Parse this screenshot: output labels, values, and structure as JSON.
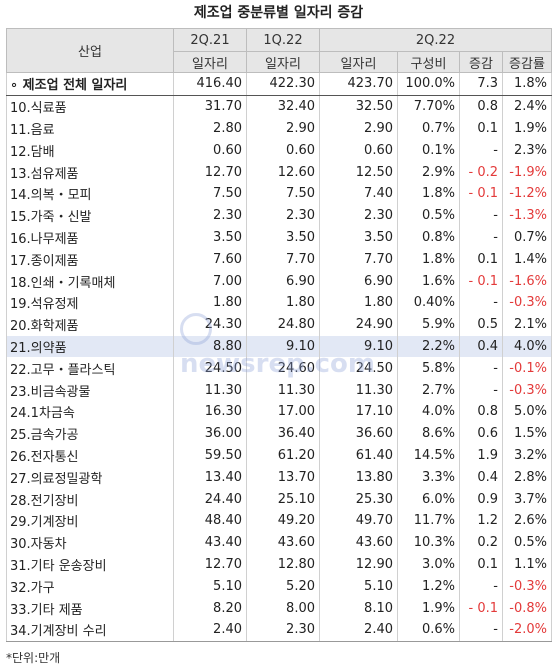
{
  "title": "제조업 중분류별 일자리 증감",
  "header": {
    "industry": "산업",
    "q1": "2Q.21",
    "q2": "1Q.22",
    "q3": "2Q.22",
    "jobs": "일자리",
    "share": "구성비",
    "change": "증감",
    "rate": "증감률"
  },
  "rows": [
    {
      "label": "∘ 제조업 전체 일자리",
      "a": "416.40",
      "b": "422.30",
      "c": "423.70",
      "s": "100.0%",
      "d": "7.3",
      "r": "1.8%",
      "neg_d": false,
      "neg_r": false
    },
    {
      "label": "10.식료품",
      "a": "31.70",
      "b": "32.40",
      "c": "32.50",
      "s": "7.70%",
      "d": "0.8",
      "r": "2.4%",
      "neg_d": false,
      "neg_r": false
    },
    {
      "label": "11.음료",
      "a": "2.80",
      "b": "2.90",
      "c": "2.90",
      "s": "0.7%",
      "d": "0.1",
      "r": "1.9%",
      "neg_d": false,
      "neg_r": false
    },
    {
      "label": "12.담배",
      "a": "0.60",
      "b": "0.60",
      "c": "0.60",
      "s": "0.1%",
      "d": "-",
      "r": "2.3%",
      "neg_d": false,
      "neg_r": false
    },
    {
      "label": "13.섬유제품",
      "a": "12.70",
      "b": "12.60",
      "c": "12.50",
      "s": "2.9%",
      "d": "- 0.2",
      "r": "-1.9%",
      "neg_d": true,
      "neg_r": true
    },
    {
      "label": "14.의복・모피",
      "a": "7.50",
      "b": "7.50",
      "c": "7.40",
      "s": "1.8%",
      "d": "- 0.1",
      "r": "-1.2%",
      "neg_d": true,
      "neg_r": true
    },
    {
      "label": "15.가죽・신발",
      "a": "2.30",
      "b": "2.30",
      "c": "2.30",
      "s": "0.5%",
      "d": "-",
      "r": "-1.3%",
      "neg_d": false,
      "neg_r": true
    },
    {
      "label": "16.나무제품",
      "a": "3.50",
      "b": "3.50",
      "c": "3.50",
      "s": "0.8%",
      "d": "-",
      "r": "0.7%",
      "neg_d": false,
      "neg_r": false
    },
    {
      "label": "17.종이제품",
      "a": "7.60",
      "b": "7.70",
      "c": "7.70",
      "s": "1.8%",
      "d": "0.1",
      "r": "1.4%",
      "neg_d": false,
      "neg_r": false
    },
    {
      "label": "18.인쇄・기록매체",
      "a": "7.00",
      "b": "6.90",
      "c": "6.90",
      "s": "1.6%",
      "d": "- 0.1",
      "r": "-1.6%",
      "neg_d": true,
      "neg_r": true
    },
    {
      "label": "19.석유정제",
      "a": "1.80",
      "b": "1.80",
      "c": "1.80",
      "s": "0.40%",
      "d": "-",
      "r": "-0.3%",
      "neg_d": false,
      "neg_r": true
    },
    {
      "label": "20.화학제품",
      "a": "24.30",
      "b": "24.80",
      "c": "24.90",
      "s": "5.9%",
      "d": "0.5",
      "r": "2.1%",
      "neg_d": false,
      "neg_r": false
    },
    {
      "label": "21.의약품",
      "a": "8.80",
      "b": "9.10",
      "c": "9.10",
      "s": "2.2%",
      "d": "0.4",
      "r": "4.0%",
      "neg_d": false,
      "neg_r": false,
      "hl": true
    },
    {
      "label": "22.고무・플라스틱",
      "a": "24.50",
      "b": "24.60",
      "c": "24.50",
      "s": "5.8%",
      "d": "-",
      "r": "-0.1%",
      "neg_d": false,
      "neg_r": true
    },
    {
      "label": "23.비금속광물",
      "a": "11.30",
      "b": "11.30",
      "c": "11.30",
      "s": "2.7%",
      "d": "-",
      "r": "-0.3%",
      "neg_d": false,
      "neg_r": true
    },
    {
      "label": "24.1차금속",
      "a": "16.30",
      "b": "17.00",
      "c": "17.10",
      "s": "4.0%",
      "d": "0.8",
      "r": "5.0%",
      "neg_d": false,
      "neg_r": false
    },
    {
      "label": "25.금속가공",
      "a": "36.00",
      "b": "36.40",
      "c": "36.60",
      "s": "8.6%",
      "d": "0.6",
      "r": "1.5%",
      "neg_d": false,
      "neg_r": false
    },
    {
      "label": "26.전자통신",
      "a": "59.50",
      "b": "61.20",
      "c": "61.40",
      "s": "14.5%",
      "d": "1.9",
      "r": "3.2%",
      "neg_d": false,
      "neg_r": false
    },
    {
      "label": "27.의료정밀광학",
      "a": "13.40",
      "b": "13.70",
      "c": "13.80",
      "s": "3.3%",
      "d": "0.4",
      "r": "2.8%",
      "neg_d": false,
      "neg_r": false
    },
    {
      "label": "28.전기장비",
      "a": "24.40",
      "b": "25.10",
      "c": "25.30",
      "s": "6.0%",
      "d": "0.9",
      "r": "3.7%",
      "neg_d": false,
      "neg_r": false
    },
    {
      "label": "29.기계장비",
      "a": "48.40",
      "b": "49.20",
      "c": "49.70",
      "s": "11.7%",
      "d": "1.2",
      "r": "2.6%",
      "neg_d": false,
      "neg_r": false
    },
    {
      "label": "30.자동차",
      "a": "43.40",
      "b": "43.60",
      "c": "43.60",
      "s": "10.3%",
      "d": "0.2",
      "r": "0.5%",
      "neg_d": false,
      "neg_r": false
    },
    {
      "label": "31.기타 운송장비",
      "a": "12.70",
      "b": "12.80",
      "c": "12.90",
      "s": "3.0%",
      "d": "0.1",
      "r": "1.1%",
      "neg_d": false,
      "neg_r": false
    },
    {
      "label": "32.가구",
      "a": "5.10",
      "b": "5.20",
      "c": "5.10",
      "s": "1.2%",
      "d": "-",
      "r": "-0.3%",
      "neg_d": false,
      "neg_r": true
    },
    {
      "label": "33.기타 제품",
      "a": "8.20",
      "b": "8.00",
      "c": "8.10",
      "s": "1.9%",
      "d": "- 0.1",
      "r": "-0.8%",
      "neg_d": true,
      "neg_r": true
    },
    {
      "label": "34.기계장비 수리",
      "a": "2.40",
      "b": "2.30",
      "c": "2.40",
      "s": "0.6%",
      "d": "-",
      "r": "-2.0%",
      "neg_d": false,
      "neg_r": true
    }
  ],
  "note": "*단위:만개",
  "watermark": "newsrep.com",
  "colors": {
    "negative": "#e33a3a",
    "header_bg": "#e6e6e6",
    "highlight_row": "#e2e8f5"
  }
}
